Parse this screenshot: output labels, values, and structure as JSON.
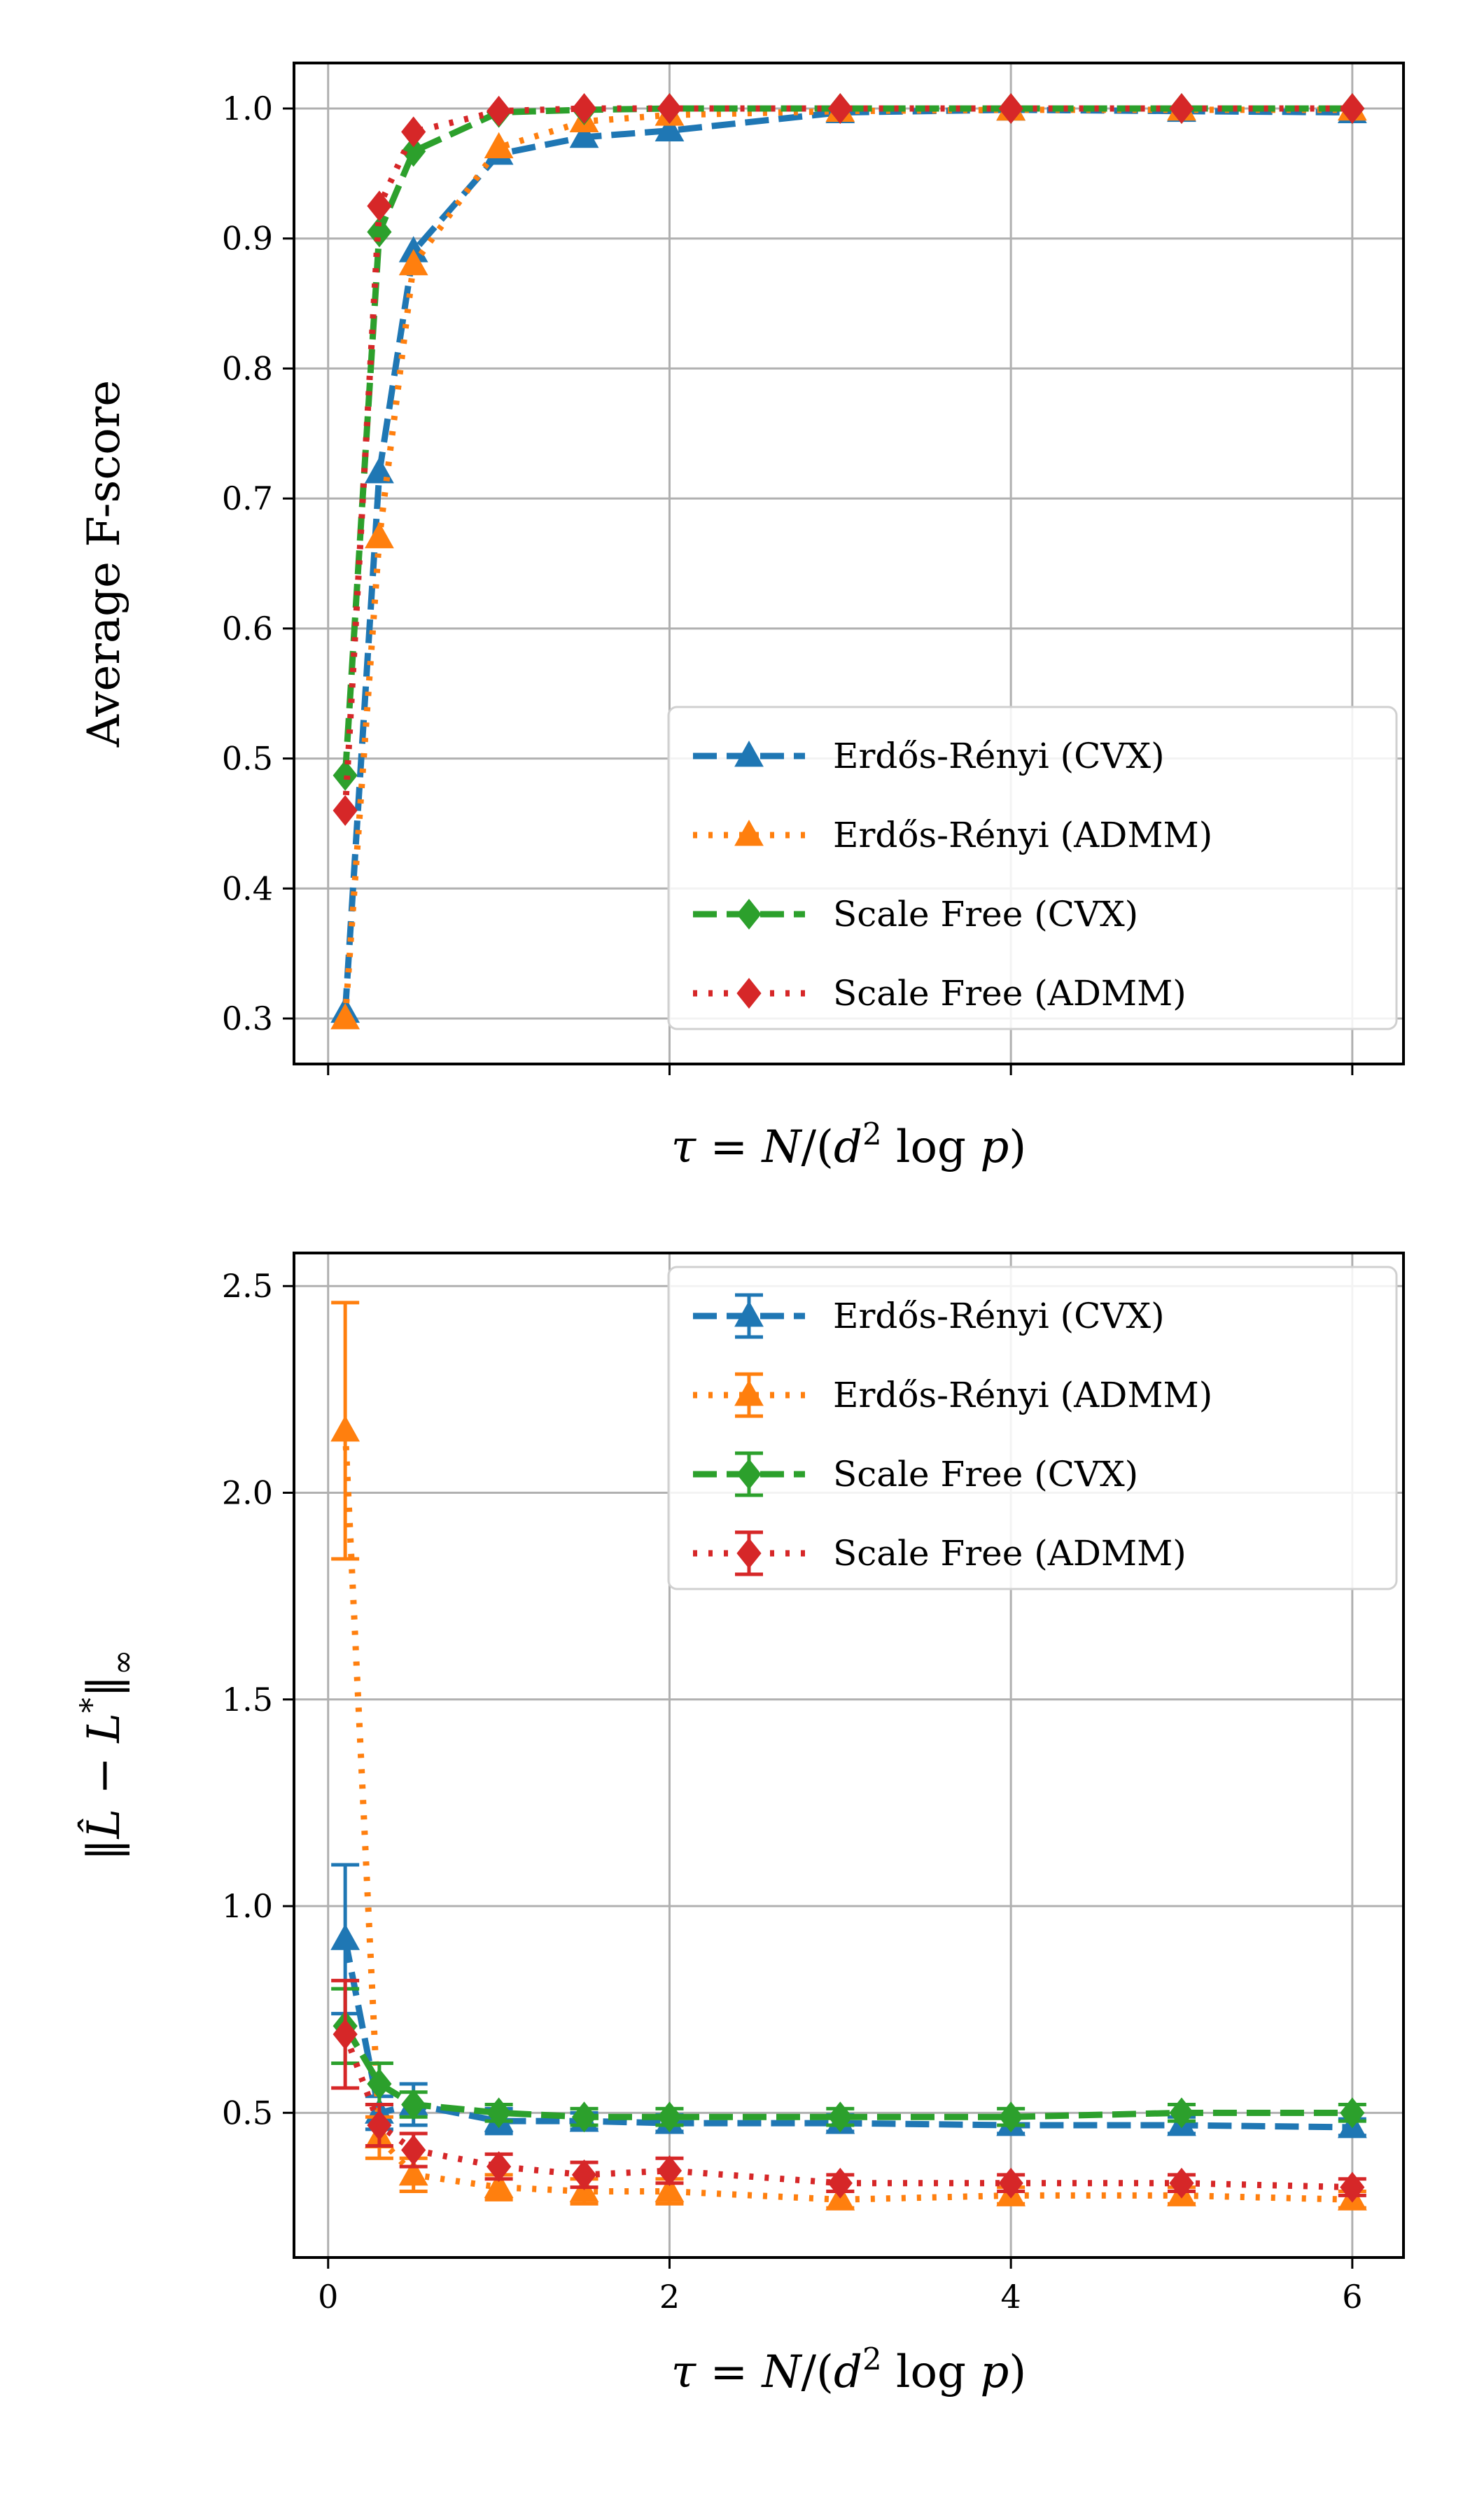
{
  "chart_data": [
    {
      "type": "line",
      "ylabel": "Average F-score",
      "xlabel": "τ = N/(d² log p)",
      "xlim": [
        -0.2,
        6.3
      ],
      "ylim": [
        0.265,
        1.035
      ],
      "xticks": [
        0,
        2,
        4,
        6
      ],
      "xtick_labels_visible": false,
      "yticks": [
        0.3,
        0.4,
        0.5,
        0.6,
        0.7,
        0.8,
        0.9,
        1.0
      ],
      "ytick_labels": [
        "0.3",
        "0.4",
        "0.5",
        "0.6",
        "0.7",
        "0.8",
        "0.9",
        "1.0"
      ],
      "grid": true,
      "legend": "bottom-right",
      "x": [
        0.1,
        0.3,
        0.5,
        1,
        1.5,
        2,
        3,
        4,
        5,
        6
      ],
      "series": [
        {
          "name": "Erdős-Rényi (CVX)",
          "color": "#1f77b4",
          "dash": "dashed",
          "marker": "triangle",
          "values": [
            0.305,
            0.72,
            0.89,
            0.965,
            0.978,
            0.983,
            0.997,
            0.999,
            0.998,
            0.997
          ]
        },
        {
          "name": "Erdős-Rényi (ADMM)",
          "color": "#ff7f0e",
          "dash": "dotted",
          "marker": "triangle",
          "values": [
            0.3,
            0.67,
            0.88,
            0.97,
            0.99,
            0.995,
            0.998,
            0.999,
            0.999,
            0.999
          ]
        },
        {
          "name": "Scale Free (CVX)",
          "color": "#2ca02c",
          "dash": "dashed",
          "marker": "diamond",
          "values": [
            0.487,
            0.905,
            0.967,
            0.997,
            0.999,
            1.0,
            1.0,
            1.0,
            1.0,
            1.0
          ]
        },
        {
          "name": "Scale Free (ADMM)",
          "color": "#d62728",
          "dash": "dotted",
          "marker": "diamond",
          "values": [
            0.46,
            0.925,
            0.982,
            0.998,
            1.0,
            1.0,
            1.0,
            1.0,
            1.0,
            1.0
          ]
        }
      ]
    },
    {
      "type": "line",
      "ylabel": "‖L̂ − L*‖∞",
      "xlabel": "τ = N/(d² log p)",
      "xlim": [
        -0.2,
        6.3
      ],
      "ylim": [
        0.15,
        2.58
      ],
      "xticks": [
        0,
        2,
        4,
        6
      ],
      "xtick_labels": [
        "0",
        "2",
        "4",
        "6"
      ],
      "yticks": [
        0.5,
        1.0,
        1.5,
        2.0,
        2.5
      ],
      "ytick_labels": [
        "0.5",
        "1.0",
        "1.5",
        "2.0",
        "2.5"
      ],
      "grid": true,
      "legend": "top-right",
      "x": [
        0.1,
        0.3,
        0.5,
        1,
        1.5,
        2,
        3,
        4,
        5,
        6
      ],
      "series": [
        {
          "name": "Erdős-Rényi (CVX)",
          "color": "#1f77b4",
          "dash": "dashed",
          "marker": "triangle",
          "values": [
            0.92,
            0.5,
            0.52,
            0.48,
            0.48,
            0.475,
            0.475,
            0.47,
            0.47,
            0.465
          ],
          "errors": [
            0.18,
            0.04,
            0.05,
            0.03,
            0.02,
            0.02,
            0.02,
            0.02,
            0.02,
            0.02
          ]
        },
        {
          "name": "Erdős-Rényi (ADMM)",
          "color": "#ff7f0e",
          "dash": "dotted",
          "marker": "triangle",
          "values": [
            2.15,
            0.44,
            0.35,
            0.32,
            0.31,
            0.31,
            0.29,
            0.3,
            0.3,
            0.29
          ],
          "errors": [
            0.31,
            0.05,
            0.04,
            0.03,
            0.03,
            0.03,
            0.02,
            0.02,
            0.02,
            0.02
          ]
        },
        {
          "name": "Scale Free (CVX)",
          "color": "#2ca02c",
          "dash": "dashed",
          "marker": "diamond",
          "values": [
            0.71,
            0.57,
            0.52,
            0.5,
            0.49,
            0.49,
            0.49,
            0.49,
            0.5,
            0.5
          ],
          "errors": [
            0.09,
            0.05,
            0.03,
            0.02,
            0.02,
            0.02,
            0.02,
            0.02,
            0.02,
            0.02
          ]
        },
        {
          "name": "Scale Free (ADMM)",
          "color": "#d62728",
          "dash": "dotted",
          "marker": "diamond",
          "values": [
            0.69,
            0.47,
            0.41,
            0.37,
            0.35,
            0.36,
            0.33,
            0.33,
            0.33,
            0.32
          ],
          "errors": [
            0.13,
            0.05,
            0.04,
            0.03,
            0.03,
            0.03,
            0.02,
            0.02,
            0.02,
            0.02
          ]
        }
      ]
    }
  ]
}
